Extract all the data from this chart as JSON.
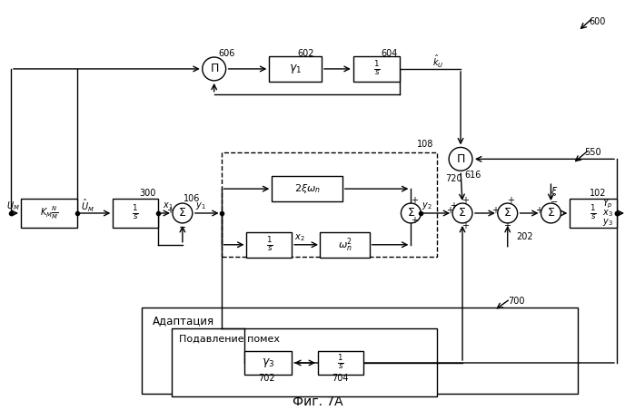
{
  "bg_color": "#ffffff",
  "line_color": "#000000",
  "adaptation_label": "Адаптация",
  "noise_label": "Подавление помех",
  "fig_label": "Фиг. 7А"
}
